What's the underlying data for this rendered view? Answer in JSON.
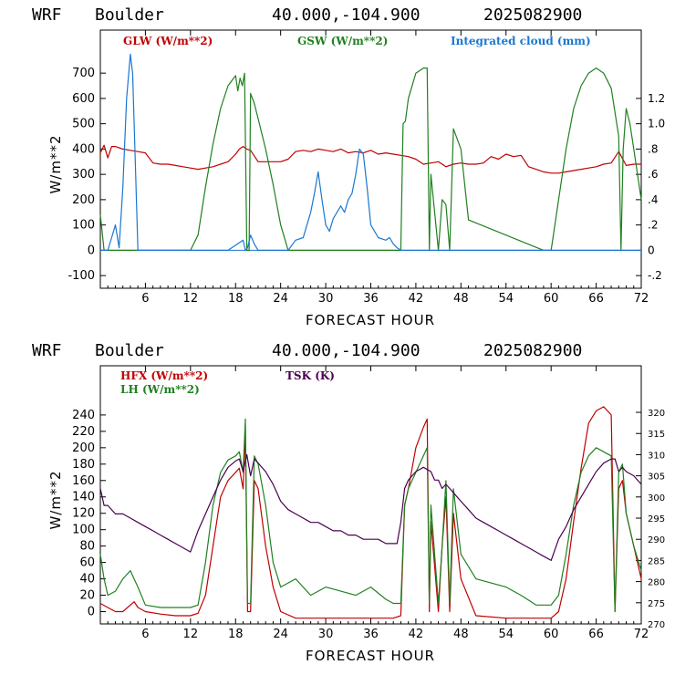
{
  "charts": [
    {
      "header": {
        "model": "WRF",
        "location": "Boulder",
        "coords": "40.000,-104.900",
        "date": "2025082900"
      },
      "xlabel": "FORECAST HOUR",
      "ylabel": "W/m**2"
    },
    {
      "header": {
        "model": "WRF",
        "location": "Boulder",
        "coords": "40.000,-104.900",
        "date": "2025082900"
      },
      "xlabel": "FORECAST HOUR",
      "ylabel": "W/m**2"
    }
  ],
  "chart_data": [
    {
      "type": "line",
      "xlim": [
        0,
        72
      ],
      "ylim": [
        -150,
        870
      ],
      "x_ticks": [
        6,
        12,
        18,
        24,
        30,
        36,
        42,
        48,
        54,
        60,
        66,
        72
      ],
      "y_ticks": [
        -100,
        0,
        100,
        200,
        300,
        400,
        500,
        600,
        700
      ],
      "y_right": {
        "ylim": [
          -0.3,
          1.74
        ],
        "ticks": [
          -0.2,
          0,
          0.2,
          0.4,
          0.6,
          0.8,
          1.0,
          1.2
        ],
        "tick_labels": [
          "-.2",
          "0",
          ".2",
          ".4",
          ".6",
          ".8",
          "1.0",
          "1.2"
        ]
      },
      "series": [
        {
          "name": "GLW (W/m**2)",
          "color": "#c00000",
          "axis": "left",
          "x": [
            0,
            0.5,
            1,
            1.5,
            2,
            2.5,
            3,
            4,
            5,
            6,
            7,
            8,
            9,
            10,
            11,
            12,
            13,
            14,
            15,
            16,
            17,
            18,
            18.5,
            19,
            19.5,
            20,
            21,
            22,
            23,
            24,
            25,
            26,
            27,
            28,
            29,
            30,
            31,
            32,
            33,
            34,
            35,
            36,
            37,
            38,
            39,
            40,
            41,
            42,
            43,
            44,
            45,
            46,
            47,
            48,
            49,
            50,
            51,
            52,
            53,
            54,
            55,
            56,
            57,
            58,
            59,
            60,
            61,
            62,
            63,
            64,
            65,
            66,
            67,
            68,
            69,
            70,
            71,
            72
          ],
          "y": [
            385,
            415,
            365,
            410,
            410,
            405,
            400,
            395,
            390,
            385,
            345,
            340,
            340,
            335,
            330,
            325,
            320,
            325,
            330,
            340,
            350,
            380,
            400,
            410,
            400,
            395,
            350,
            350,
            350,
            350,
            360,
            390,
            395,
            390,
            400,
            395,
            390,
            400,
            385,
            390,
            385,
            395,
            380,
            385,
            380,
            375,
            370,
            360,
            340,
            345,
            350,
            330,
            340,
            345,
            340,
            340,
            345,
            370,
            360,
            380,
            370,
            375,
            330,
            320,
            310,
            305,
            305,
            310,
            315,
            320,
            325,
            330,
            340,
            345,
            390,
            335,
            340,
            340
          ]
        },
        {
          "name": "GSW (W/m**2)",
          "color": "#208020",
          "axis": "left",
          "x": [
            0,
            0.5,
            1,
            12,
            13,
            14,
            15,
            16,
            17,
            18,
            18.3,
            18.6,
            18.9,
            19.2,
            19.5,
            19.8,
            20,
            20.5,
            21,
            22,
            23,
            24,
            25,
            26,
            27,
            39,
            40,
            40.3,
            40.6,
            41,
            42,
            43,
            43.5,
            43.8,
            44,
            45,
            45.5,
            46,
            46.5,
            47,
            48,
            49,
            59,
            60,
            61,
            62,
            63,
            64,
            65,
            66,
            67,
            68,
            69,
            69.3,
            69.6,
            70,
            70.5,
            71,
            72
          ],
          "y": [
            140,
            0,
            0,
            0,
            60,
            250,
            420,
            560,
            650,
            690,
            630,
            680,
            650,
            700,
            0,
            0,
            620,
            580,
            520,
            400,
            260,
            100,
            0,
            0,
            0,
            0,
            0,
            500,
            510,
            600,
            700,
            720,
            720,
            0,
            300,
            0,
            200,
            180,
            0,
            480,
            400,
            120,
            0,
            0,
            200,
            400,
            560,
            650,
            700,
            720,
            700,
            640,
            450,
            0,
            400,
            560,
            500,
            400,
            200
          ]
        },
        {
          "name": "Integrated cloud (mm)",
          "color": "#1a78d0",
          "axis": "right",
          "x": [
            0,
            1,
            1.5,
            2,
            2.5,
            3,
            3.5,
            4,
            4.3,
            4.6,
            5,
            5.5,
            6,
            17,
            18,
            18.5,
            19,
            19.3,
            19.6,
            20,
            20.5,
            21,
            25,
            26,
            27,
            28,
            28.5,
            29,
            29.5,
            30,
            30.5,
            31,
            32,
            32.5,
            33,
            33.5,
            34,
            34.5,
            35,
            35.5,
            36,
            36.5,
            37,
            38,
            38.5,
            39,
            39.5,
            40,
            72
          ],
          "y": [
            0,
            0,
            0.1,
            0.2,
            0.02,
            0.5,
            1.2,
            1.55,
            1.4,
            0.8,
            0,
            0,
            0,
            0,
            0.04,
            0.06,
            0.08,
            0,
            0.02,
            0.12,
            0.05,
            0,
            0,
            0.08,
            0.1,
            0.3,
            0.45,
            0.62,
            0.4,
            0.2,
            0.15,
            0.25,
            0.35,
            0.3,
            0.4,
            0.45,
            0.6,
            0.8,
            0.76,
            0.5,
            0.2,
            0.15,
            0.1,
            0.08,
            0.1,
            0.05,
            0.02,
            0,
            0
          ]
        }
      ]
    },
    {
      "type": "line",
      "xlim": [
        0,
        72
      ],
      "ylim": [
        -15,
        300
      ],
      "x_ticks": [
        6,
        12,
        18,
        24,
        30,
        36,
        42,
        48,
        54,
        60,
        66,
        72
      ],
      "y_ticks": [
        0,
        20,
        40,
        60,
        80,
        100,
        120,
        140,
        160,
        180,
        200,
        220,
        240
      ],
      "y_right": {
        "ylim": [
          270,
          331
        ],
        "ticks": [
          270,
          275,
          280,
          285,
          290,
          295,
          300,
          305,
          310,
          315,
          320
        ]
      },
      "series": [
        {
          "name": "HFX (W/m**2)",
          "color": "#c00000",
          "axis": "left",
          "x": [
            0,
            1,
            2,
            3,
            4,
            4.5,
            5,
            6,
            8,
            10,
            12,
            13,
            14,
            15,
            16,
            17,
            18,
            18.5,
            19,
            19.3,
            19.6,
            20,
            20.5,
            21,
            22,
            23,
            24,
            26,
            30,
            36,
            39,
            40,
            40.5,
            41,
            42,
            43,
            43.5,
            43.8,
            44,
            45,
            45.5,
            46,
            46.5,
            47,
            48,
            50,
            54,
            60,
            61,
            62,
            63,
            64,
            65,
            66,
            67,
            68,
            68.5,
            69,
            69.5,
            70,
            71,
            72
          ],
          "y": [
            10,
            5,
            0,
            0,
            8,
            12,
            5,
            0,
            -3,
            -5,
            -5,
            -2,
            20,
            80,
            140,
            160,
            170,
            175,
            150,
            220,
            0,
            0,
            160,
            150,
            80,
            30,
            0,
            -8,
            -8,
            -8,
            -8,
            -5,
            130,
            150,
            200,
            225,
            235,
            0,
            110,
            0,
            80,
            140,
            0,
            120,
            40,
            -5,
            -8,
            -8,
            0,
            40,
            110,
            175,
            230,
            245,
            250,
            240,
            0,
            150,
            160,
            120,
            80,
            40
          ]
        },
        {
          "name": "LH (W/m**2)",
          "color": "#208020",
          "axis": "left",
          "x": [
            0,
            0.5,
            1,
            2,
            3,
            4,
            5,
            6,
            8,
            10,
            12,
            13,
            14,
            15,
            16,
            17,
            18,
            18.5,
            19,
            19.3,
            19.6,
            20,
            20.5,
            21,
            22,
            23,
            24,
            25,
            26,
            28,
            30,
            32,
            34,
            36,
            38,
            39,
            40,
            40.5,
            41,
            42,
            43,
            43.5,
            43.8,
            44,
            45,
            45.5,
            46,
            46.5,
            47,
            48,
            50,
            52,
            54,
            56,
            58,
            60,
            61,
            62,
            63,
            64,
            65,
            66,
            67,
            68,
            68.5,
            69,
            69.5,
            70,
            71,
            72
          ],
          "y": [
            70,
            40,
            20,
            25,
            40,
            50,
            30,
            8,
            5,
            5,
            5,
            8,
            60,
            130,
            170,
            185,
            190,
            195,
            170,
            235,
            10,
            10,
            190,
            180,
            130,
            60,
            30,
            35,
            40,
            20,
            30,
            25,
            20,
            30,
            15,
            10,
            10,
            130,
            150,
            170,
            190,
            200,
            10,
            130,
            10,
            80,
            160,
            10,
            150,
            70,
            40,
            35,
            30,
            20,
            8,
            8,
            20,
            70,
            130,
            170,
            190,
            200,
            195,
            190,
            0,
            170,
            180,
            120,
            80,
            50
          ]
        },
        {
          "name": "TSK (K)",
          "color": "#4a0050",
          "axis": "right",
          "x": [
            0,
            0.5,
            1,
            2,
            3,
            4,
            5,
            6,
            7,
            8,
            9,
            10,
            11,
            12,
            13,
            14,
            15,
            16,
            17,
            18,
            18.5,
            19,
            19.5,
            20,
            20.5,
            21,
            22,
            23,
            24,
            25,
            26,
            27,
            28,
            29,
            30,
            31,
            32,
            33,
            34,
            35,
            36,
            37,
            38,
            39,
            39.5,
            40,
            40.5,
            41,
            42,
            43,
            44,
            44.5,
            45,
            45.5,
            46,
            46.5,
            47,
            48,
            49,
            50,
            51,
            52,
            53,
            54,
            55,
            56,
            57,
            58,
            59,
            60,
            61,
            62,
            63,
            64,
            65,
            66,
            67,
            68,
            68.5,
            69,
            69.5,
            70,
            71,
            72
          ],
          "y": [
            302,
            298,
            298,
            296,
            296,
            295,
            294,
            293,
            292,
            291,
            290,
            289,
            288,
            287,
            292,
            296,
            300,
            304,
            307,
            308.5,
            309,
            306,
            310,
            305,
            309,
            308,
            306,
            303,
            299,
            297,
            296,
            295,
            294,
            294,
            293,
            292,
            292,
            291,
            291,
            290,
            290,
            290,
            289,
            289,
            289,
            294,
            302,
            304,
            306,
            307,
            306,
            304,
            304,
            302,
            303,
            302,
            301,
            299,
            297,
            295,
            294,
            293,
            292,
            291,
            290,
            289,
            288,
            287,
            286,
            285,
            290,
            293,
            297,
            300,
            303,
            306,
            308,
            309,
            309,
            306,
            307,
            306,
            305,
            303
          ]
        }
      ]
    }
  ]
}
